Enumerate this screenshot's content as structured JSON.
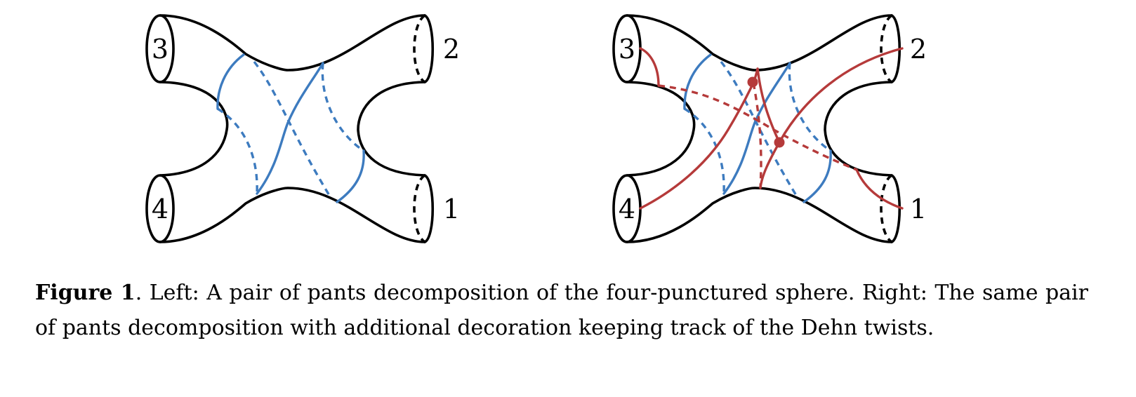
{
  "figure": {
    "left_panel": {
      "boundary_labels": [
        "1",
        "2",
        "3",
        "4"
      ]
    },
    "right_panel": {
      "boundary_labels": [
        "1",
        "2",
        "3",
        "4"
      ]
    },
    "colors": {
      "outline": "#000000",
      "pants_curves": "#3d7bbf",
      "decoration_arcs": "#b53a3a"
    }
  },
  "caption": {
    "label": "Figure 1",
    "text": ". Left: A pair of pants decomposition of the four-punctured sphere. Right: The same pair of pants decomposition with additional decoration keeping track of the Dehn twists."
  }
}
